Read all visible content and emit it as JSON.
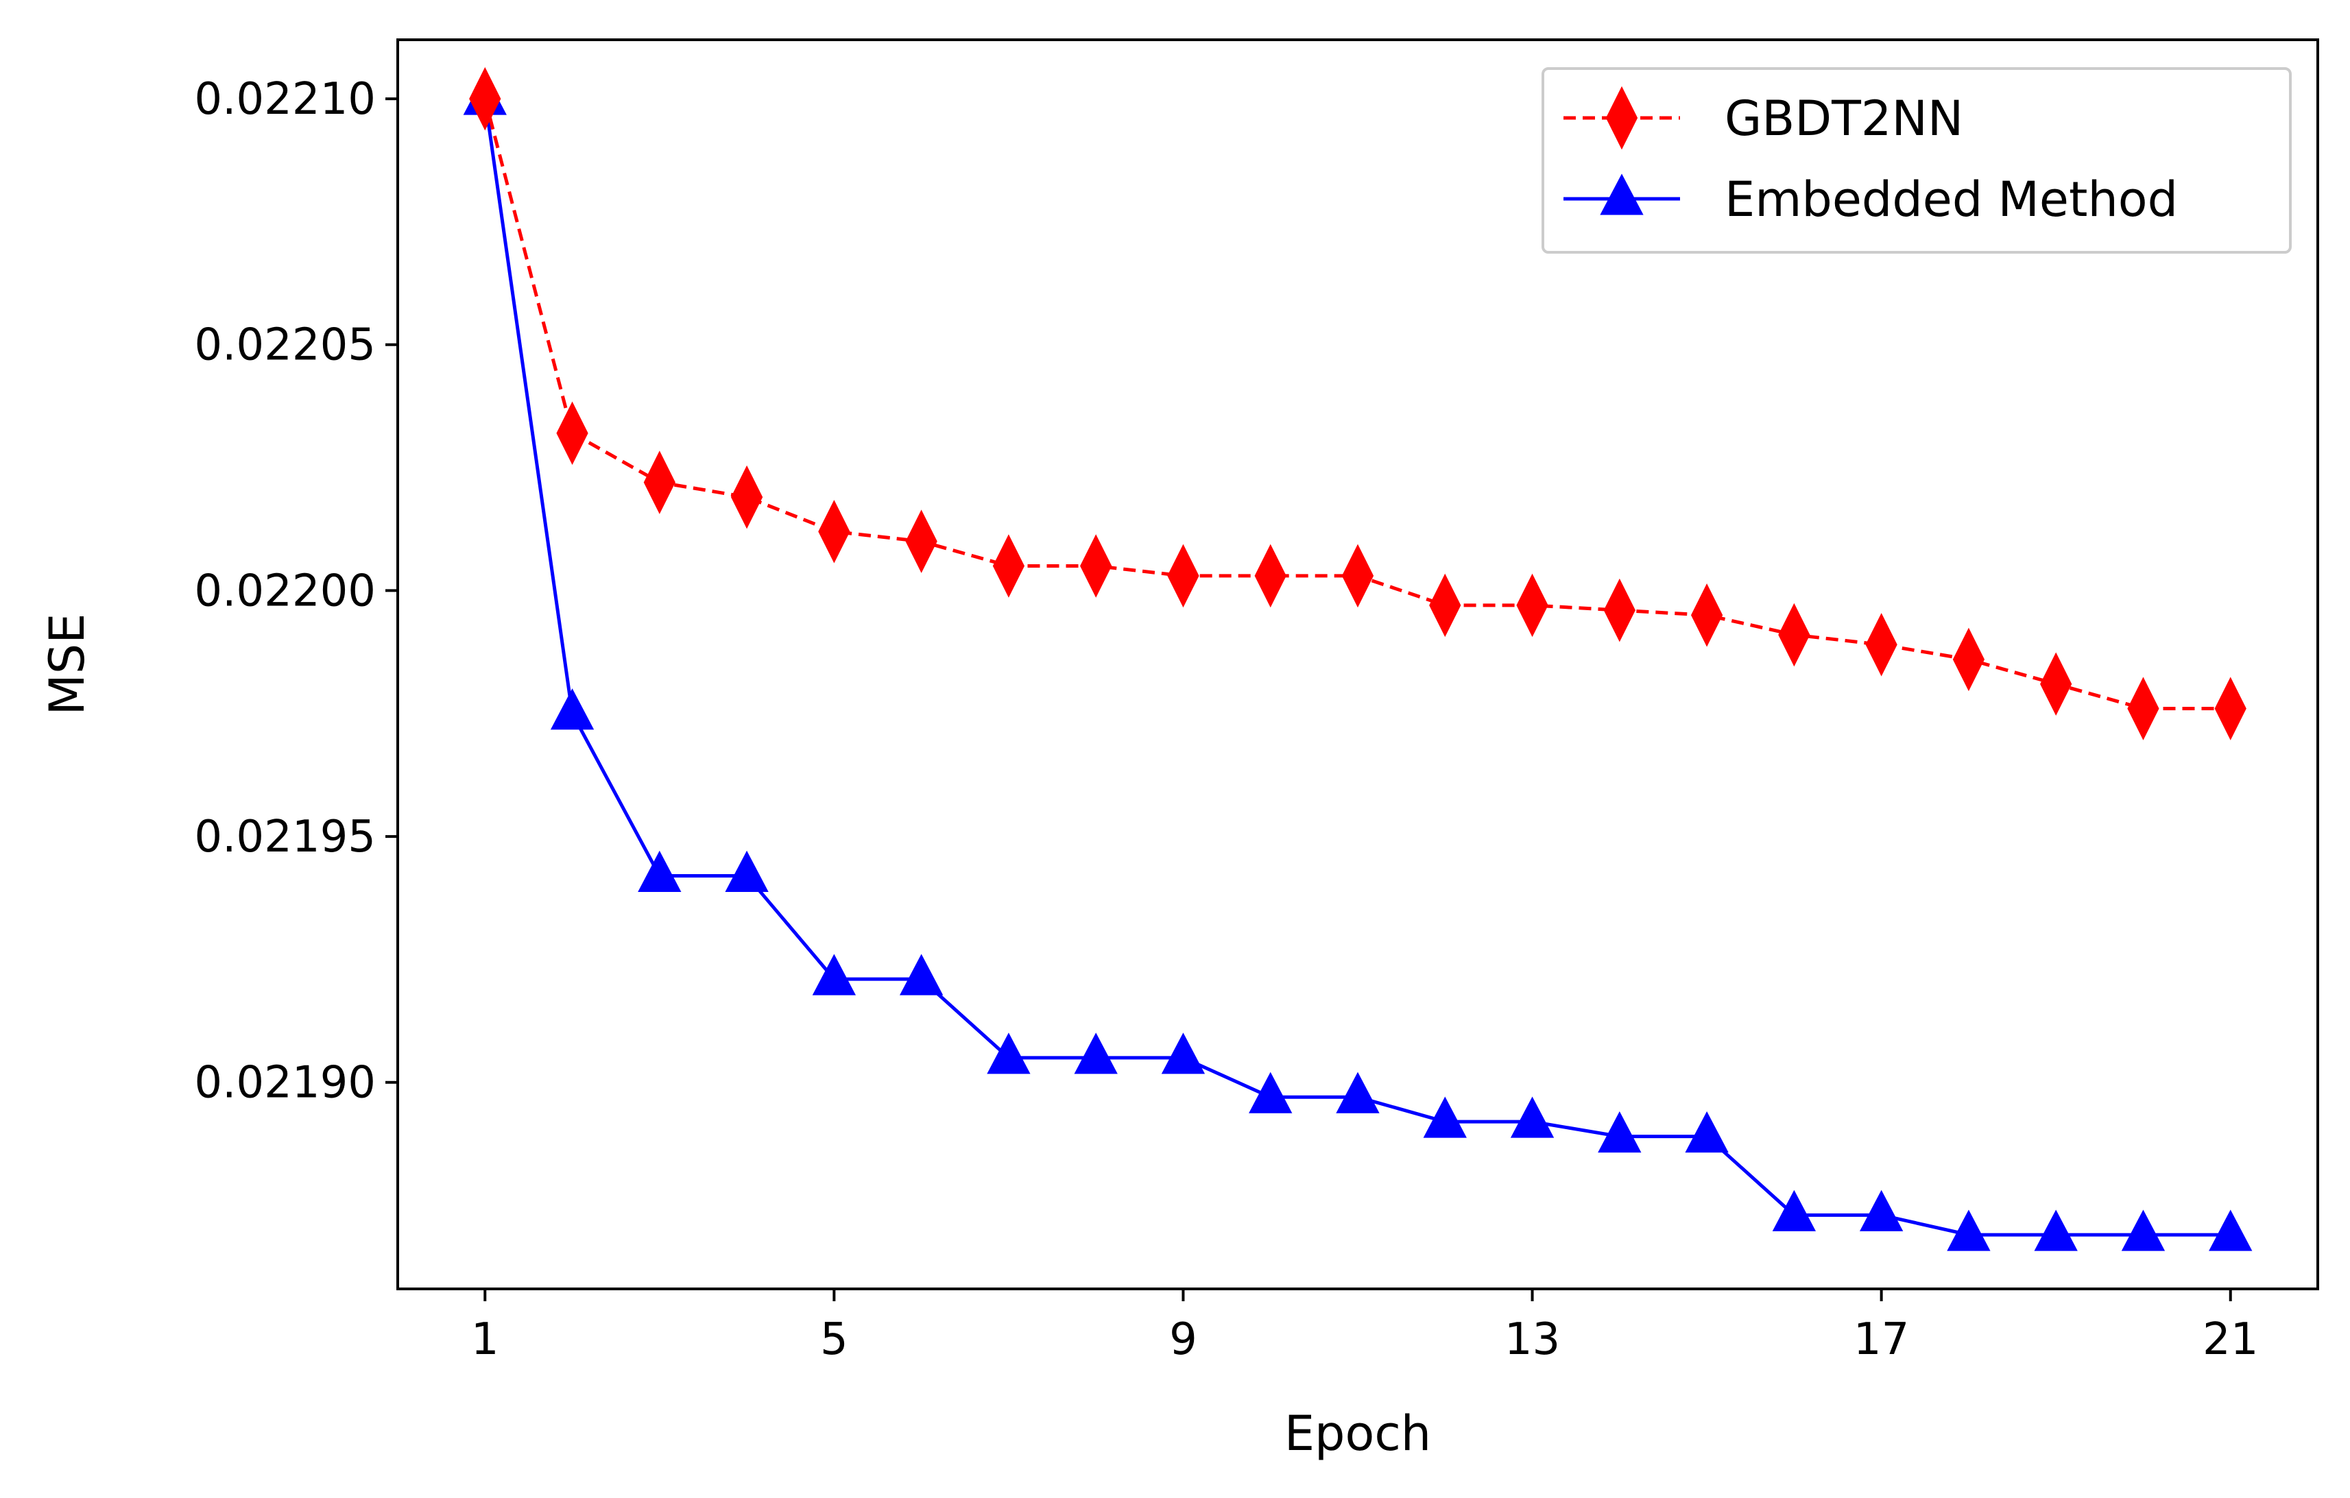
{
  "chart_data": {
    "type": "line",
    "title": "",
    "xlabel": "Epoch",
    "ylabel": "MSE",
    "x": [
      1,
      2,
      3,
      4,
      5,
      6,
      7,
      8,
      9,
      10,
      11,
      12,
      13,
      14,
      15,
      16,
      17,
      18,
      19,
      20,
      21
    ],
    "xticks": [
      1,
      5,
      9,
      13,
      17,
      21
    ],
    "xtick_labels": [
      "1",
      "5",
      "9",
      "13",
      "17",
      "21"
    ],
    "xlim": [
      0,
      22
    ],
    "yticks": [
      0.0219,
      0.02195,
      0.022,
      0.02205,
      0.0221
    ],
    "ytick_labels": [
      "0.02190",
      "0.02195",
      "0.02200",
      "0.02205",
      "0.02210"
    ],
    "ylim": [
      0.021858,
      0.022112
    ],
    "legend_position": "upper right",
    "grid": false,
    "series": [
      {
        "name": "GBDT2NN",
        "color": "#ff0000",
        "linestyle": "dashed",
        "marker": "thin-diamond",
        "values": [
          0.0221,
          0.022032,
          0.022022,
          0.022019,
          0.022012,
          0.02201,
          0.022005,
          0.022005,
          0.022003,
          0.022003,
          0.022003,
          0.021997,
          0.021997,
          0.021996,
          0.021995,
          0.021991,
          0.021989,
          0.021986,
          0.021981,
          0.021976,
          0.021976
        ]
      },
      {
        "name": "Embedded Method",
        "color": "#0000ff",
        "linestyle": "solid",
        "marker": "triangle-up",
        "values": [
          0.0221,
          0.021975,
          0.021942,
          0.021942,
          0.021921,
          0.021921,
          0.021905,
          0.021905,
          0.021905,
          0.021897,
          0.021897,
          0.021892,
          0.021892,
          0.021889,
          0.021889,
          0.021873,
          0.021873,
          0.021869,
          0.021869,
          0.021869,
          0.021869
        ]
      }
    ]
  }
}
